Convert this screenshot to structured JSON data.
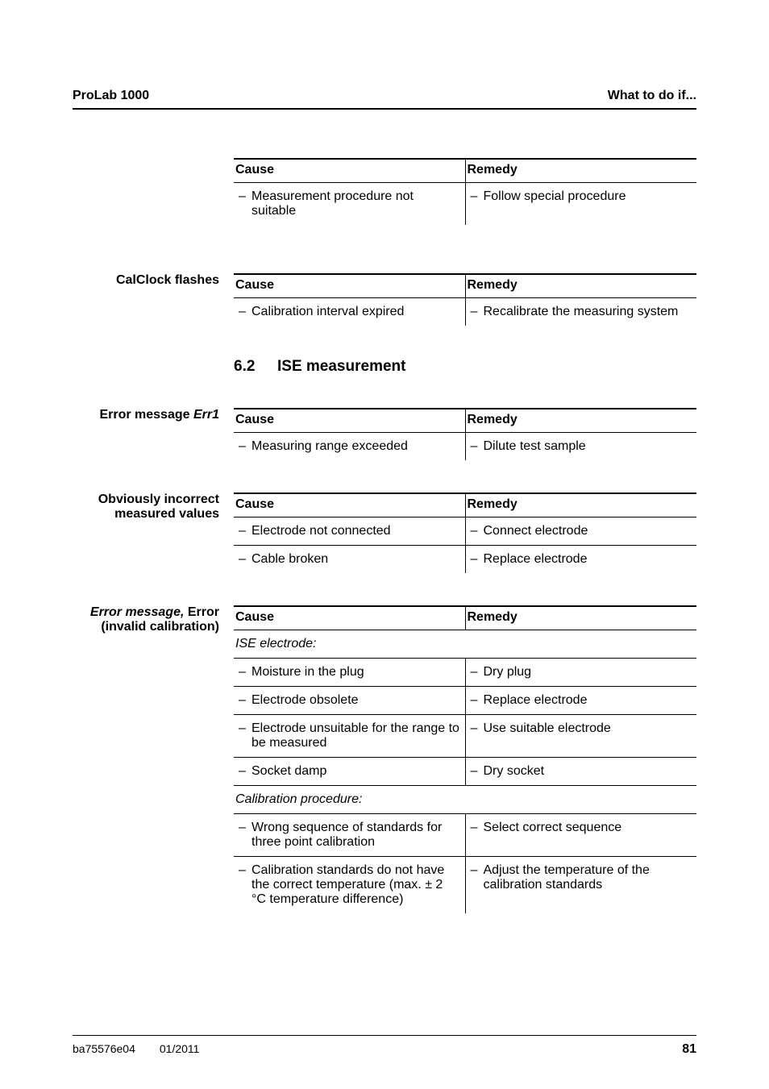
{
  "header": {
    "left": "ProLab 1000",
    "right": "What to do if..."
  },
  "colors": {
    "text": "#000000",
    "background": "#ffffff",
    "rule": "#000000"
  },
  "section": {
    "number": "6.2",
    "title": "ISE measurement"
  },
  "tables": {
    "t1": {
      "label": "",
      "header_cause": "Cause",
      "header_remedy": "Remedy",
      "rows": [
        {
          "cause": "Measurement procedure not suitable",
          "remedy": "Follow special procedure"
        }
      ]
    },
    "t2": {
      "label": "CalClock flashes",
      "header_cause": "Cause",
      "header_remedy": "Remedy",
      "rows": [
        {
          "cause": "Calibration interval expired",
          "remedy": "Recalibrate the measuring system"
        }
      ]
    },
    "t3": {
      "label_prefix": "Error message ",
      "label_italic": "Err1",
      "header_cause": "Cause",
      "header_remedy": "Remedy",
      "rows": [
        {
          "cause": "Measuring range exceeded",
          "remedy": "Dilute test sample"
        }
      ]
    },
    "t4": {
      "label": "Obviously incorrect measured values",
      "header_cause": "Cause",
      "header_remedy": "Remedy",
      "rows": [
        {
          "cause": "Electrode not connected",
          "remedy": "Connect electrode"
        },
        {
          "cause": "Cable broken",
          "remedy": "Replace electrode"
        }
      ]
    },
    "t5": {
      "label_italic_prefix": "Error message,",
      "label_rest": " Error (invalid calibration)",
      "header_cause": "Cause",
      "header_remedy": "Remedy",
      "section1": "ISE electrode:",
      "section2": "Calibration procedure:",
      "rows1": [
        {
          "cause": "Moisture in the plug",
          "remedy": "Dry plug"
        },
        {
          "cause": "Electrode obsolete",
          "remedy": "Replace electrode"
        },
        {
          "cause": "Electrode unsuitable for the range to be measured",
          "remedy": "Use suitable electrode"
        },
        {
          "cause": "Socket damp",
          "remedy": "Dry socket"
        }
      ],
      "rows2": [
        {
          "cause": "Wrong sequence of standards for three point calibration",
          "remedy": "Select correct sequence"
        },
        {
          "cause": "Calibration standards do not have the correct temperature (max. ± 2 °C temperature difference)",
          "remedy": "Adjust the temperature of the calibration standards"
        }
      ]
    }
  },
  "footer": {
    "doc_id": "ba75576e04",
    "date": "01/2011",
    "page": "81"
  }
}
